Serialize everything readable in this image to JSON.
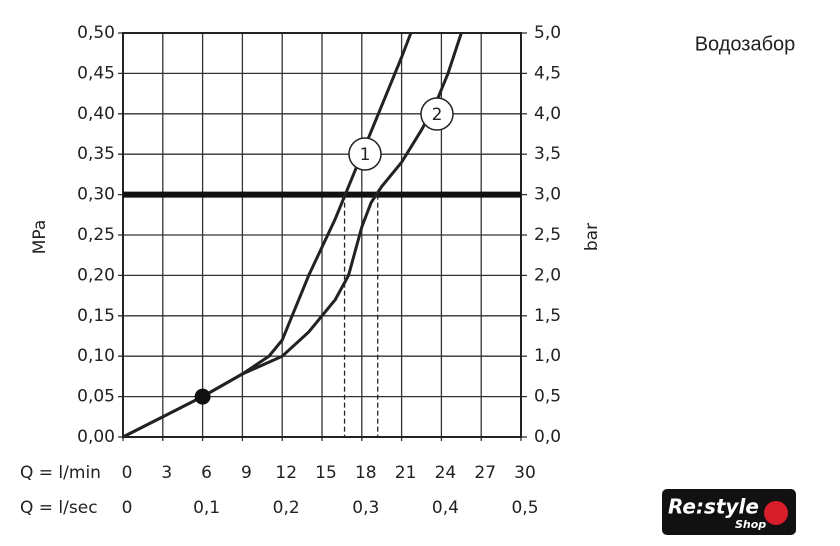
{
  "chart_data": {
    "type": "line",
    "title": "Водозабор",
    "y_label": "MPa",
    "y2_label": "bar",
    "x_row_label": "Q = l/min",
    "x2_row_label": "Q = l/sec",
    "xlim": [
      0,
      30
    ],
    "xticks": [
      0,
      3,
      6,
      9,
      12,
      15,
      18,
      21,
      24,
      27,
      30
    ],
    "x2lim": [
      0,
      0.5
    ],
    "x2ticks": [
      {
        "value": 0,
        "label": "0"
      },
      {
        "value": 0.1,
        "label": "0,1"
      },
      {
        "value": 0.2,
        "label": "0,2"
      },
      {
        "value": 0.3,
        "label": "0,3"
      },
      {
        "value": 0.4,
        "label": "0,4"
      },
      {
        "value": 0.5,
        "label": "0,5"
      }
    ],
    "ylim": [
      0,
      0.5
    ],
    "yticks": [
      {
        "value": 0,
        "label": "0,00"
      },
      {
        "value": 0.05,
        "label": "0,05"
      },
      {
        "value": 0.1,
        "label": "0,10"
      },
      {
        "value": 0.15,
        "label": "0,15"
      },
      {
        "value": 0.2,
        "label": "0,20"
      },
      {
        "value": 0.25,
        "label": "0,25"
      },
      {
        "value": 0.3,
        "label": "0,30"
      },
      {
        "value": 0.35,
        "label": "0,35"
      },
      {
        "value": 0.4,
        "label": "0,40"
      },
      {
        "value": 0.45,
        "label": "0,45"
      },
      {
        "value": 0.5,
        "label": "0,50"
      }
    ],
    "y2lim": [
      0,
      5
    ],
    "y2ticks": [
      {
        "value": 0,
        "label": "0,0"
      },
      {
        "value": 0.5,
        "label": "0,5"
      },
      {
        "value": 1,
        "label": "1,0"
      },
      {
        "value": 1.5,
        "label": "1,5"
      },
      {
        "value": 2,
        "label": "2,0"
      },
      {
        "value": 2.5,
        "label": "2,5"
      },
      {
        "value": 3,
        "label": "3,0"
      },
      {
        "value": 3.5,
        "label": "3,5"
      },
      {
        "value": 4,
        "label": "4,0"
      },
      {
        "value": 4.5,
        "label": "4,5"
      },
      {
        "value": 5,
        "label": "5,0"
      }
    ],
    "grid": true,
    "series": [
      {
        "name": "1",
        "color": "#222222",
        "x": [
          0,
          3,
          6,
          9,
          11,
          12,
          13,
          14,
          15,
          16,
          17,
          18,
          19,
          20,
          21,
          21.7
        ],
        "values": [
          0,
          0.025,
          0.05,
          0.078,
          0.1,
          0.12,
          0.16,
          0.2,
          0.235,
          0.27,
          0.31,
          0.35,
          0.39,
          0.43,
          0.47,
          0.5
        ]
      },
      {
        "name": "2",
        "color": "#222222",
        "x": [
          0,
          3,
          6,
          9,
          12,
          14,
          16,
          17,
          17.5,
          18,
          18.7,
          19.5,
          21,
          22.5,
          23.5,
          24.5,
          25.5
        ],
        "values": [
          0,
          0.025,
          0.05,
          0.078,
          0.1,
          0.13,
          0.17,
          0.2,
          0.23,
          0.26,
          0.29,
          0.31,
          0.34,
          0.38,
          0.41,
          0.45,
          0.5
        ]
      }
    ],
    "reference_line": 0.3,
    "dashed_x": [
      16.7,
      19.2
    ],
    "marker": {
      "x": 6,
      "y": 0.05
    },
    "logo": {
      "text": "Re:style",
      "sub": "Shop"
    }
  }
}
